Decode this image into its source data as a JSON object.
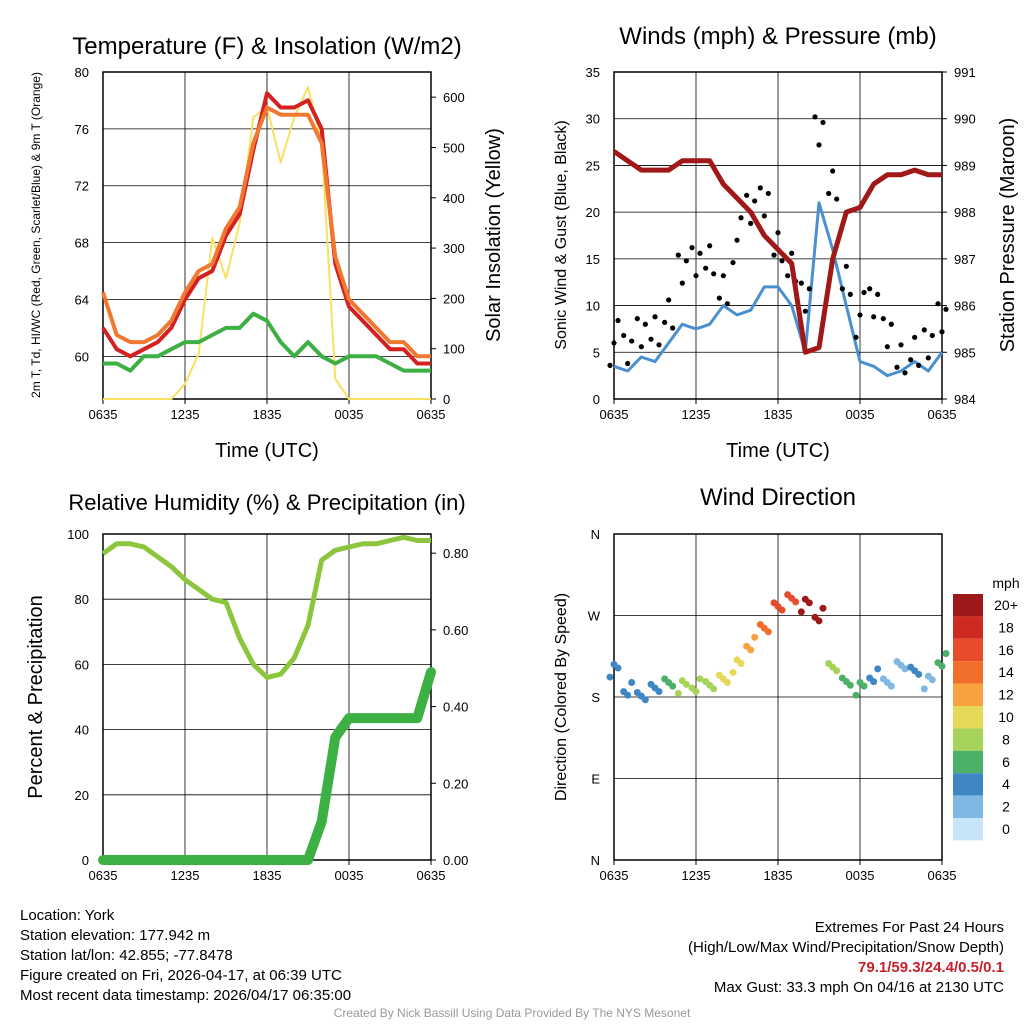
{
  "location": "Location: York",
  "elevation": "Station elevation: 177.942 m",
  "latlon": "Station lat/lon: 42.855; -77.8478",
  "created": "Figure created on Fri, 2026-04-17, at 06:39 UTC",
  "recent": "Most recent data timestamp: 2026/04/17 06:35:00",
  "extremes_title": "Extremes For Past 24 Hours",
  "extremes_legend": "(High/Low/Max Wind/Precipitation/Snow Depth)",
  "extremes_values": "79.1/59.3/24.4/0.5/0.1",
  "max_gust": "Max Gust: 33.3 mph On 04/16 at 2130 UTC",
  "credit": "Created By Nick Bassill Using Data Provided By The NYS Mesonet",
  "chart_data": [
    {
      "id": "temp",
      "type": "line",
      "title": "Temperature (F) & Insolation (W/m²)",
      "xlabel": "Time (UTC)",
      "ylabel": "2m T, Td, HI/WC (Red, Green, Scarlet/Blue) & 9m T (Orange)",
      "y2label": "Solar Insolation (Yellow)",
      "x_ticks": [
        "0635",
        "1235",
        "1835",
        "0035",
        "0635"
      ],
      "ylim": [
        57,
        80
      ],
      "y_ticks": [
        60,
        64,
        68,
        72,
        76,
        80
      ],
      "y2lim": [
        0,
        650
      ],
      "y2_ticks": [
        0,
        100,
        200,
        300,
        400,
        500,
        600
      ],
      "x_hours": [
        0,
        1,
        2,
        3,
        4,
        5,
        6,
        7,
        8,
        9,
        10,
        11,
        12,
        13,
        14,
        15,
        16,
        17,
        18,
        19,
        20,
        21,
        22,
        23,
        24
      ],
      "series": [
        {
          "name": "9m T",
          "axis": "left",
          "color": "#f07830",
          "values": [
            64.5,
            61.5,
            61,
            61,
            61.5,
            62.5,
            64.5,
            66,
            66.5,
            69,
            70.5,
            75,
            77.5,
            77,
            77,
            77,
            75,
            67,
            64,
            63,
            62,
            61,
            61,
            60,
            60
          ]
        },
        {
          "name": "2m T",
          "axis": "left",
          "color": "#d42020",
          "values": [
            62,
            60.5,
            60,
            60.5,
            61,
            62,
            64,
            65.5,
            66,
            68.5,
            70,
            74.5,
            78.5,
            77.5,
            77.5,
            78,
            76,
            66.5,
            63.5,
            62.5,
            61.5,
            60.5,
            60.5,
            59.5,
            59.5
          ]
        },
        {
          "name": "2m Td",
          "axis": "left",
          "color": "#3cb043",
          "values": [
            59.5,
            59.5,
            59,
            60,
            60,
            60.5,
            61,
            61,
            61.5,
            62,
            62,
            63,
            62.5,
            61,
            60,
            61,
            60,
            59.5,
            60,
            60,
            60,
            59.5,
            59,
            59,
            59
          ]
        },
        {
          "name": "Solar Insolation",
          "axis": "right",
          "color": "#f8e060",
          "values": [
            0,
            0,
            0,
            0,
            0,
            0,
            30,
            90,
            320,
            240,
            350,
            560,
            580,
            470,
            560,
            620,
            510,
            40,
            0,
            0,
            0,
            0,
            0,
            0,
            0
          ]
        }
      ]
    },
    {
      "id": "wind",
      "type": "line",
      "title": "Winds (mph) & Pressure (mb)",
      "xlabel": "Time (UTC)",
      "ylabel": "Sonic Wind & Gust (Blue, Black)",
      "y2label": "Station Pressure (Maroon)",
      "x_ticks": [
        "0635",
        "1235",
        "1835",
        "0035",
        "0635"
      ],
      "ylim": [
        0,
        35
      ],
      "y_ticks": [
        0,
        5,
        10,
        15,
        20,
        25,
        30,
        35
      ],
      "y2lim": [
        984,
        991
      ],
      "y2_ticks": [
        984,
        985,
        986,
        987,
        988,
        989,
        990,
        991
      ],
      "x_hours": [
        0,
        1,
        2,
        3,
        4,
        5,
        6,
        7,
        8,
        9,
        10,
        11,
        12,
        13,
        14,
        15,
        16,
        17,
        18,
        19,
        20,
        21,
        22,
        23,
        24
      ],
      "series": [
        {
          "name": "Sonic Wind",
          "axis": "left",
          "color": "#4a90d0",
          "values": [
            3.5,
            3,
            4.5,
            4,
            6,
            8,
            7.5,
            8,
            10,
            9,
            9.5,
            12,
            12,
            10,
            5,
            21,
            16,
            10,
            4,
            3.5,
            2.5,
            3,
            4,
            3,
            5
          ]
        },
        {
          "name": "Gust",
          "axis": "left",
          "color": "#000000",
          "values": [
            6,
            5,
            8,
            7,
            10,
            13,
            15,
            14,
            12,
            17,
            20,
            22,
            16,
            15,
            10,
            29,
            22,
            13,
            9,
            10,
            8,
            4,
            6,
            5,
            9
          ]
        },
        {
          "name": "Station Pressure",
          "axis": "right",
          "color": "#a01818",
          "values": [
            989.3,
            989.1,
            988.9,
            988.9,
            988.9,
            989.1,
            989.1,
            989.1,
            988.6,
            988.3,
            988.0,
            987.5,
            987.2,
            986.9,
            985.0,
            985.1,
            987.0,
            988.0,
            988.1,
            988.6,
            988.8,
            988.8,
            988.9,
            988.8,
            988.8
          ]
        }
      ]
    },
    {
      "id": "rh",
      "type": "line",
      "title": "Relative Humidity (%) & Precipitation (in)",
      "ylabel": "Percent & Precipitation",
      "x_ticks": [
        "0635",
        "1235",
        "1835",
        "0035",
        "0635"
      ],
      "ylim": [
        0,
        100
      ],
      "y_ticks": [
        0,
        20,
        40,
        60,
        80,
        100
      ],
      "y2lim": [
        0,
        0.85
      ],
      "y2_ticks": [
        "0.00",
        "0.20",
        "0.40",
        "0.60",
        "0.80"
      ],
      "x_hours": [
        0,
        1,
        2,
        3,
        4,
        5,
        6,
        7,
        8,
        9,
        10,
        11,
        12,
        13,
        14,
        15,
        16,
        17,
        18,
        19,
        20,
        21,
        22,
        23,
        24
      ],
      "series": [
        {
          "name": "Relative Humidity",
          "axis": "left",
          "color": "#8cc63f",
          "values": [
            94,
            97,
            97,
            96,
            93,
            90,
            86,
            83,
            80,
            79,
            68,
            60,
            56,
            57,
            62,
            72,
            92,
            95,
            96,
            97,
            97,
            98,
            99,
            98,
            98
          ]
        },
        {
          "name": "Precipitation",
          "axis": "right",
          "color": "#3cb043",
          "values": [
            0,
            0,
            0,
            0,
            0,
            0,
            0,
            0,
            0,
            0,
            0,
            0,
            0,
            0,
            0,
            0,
            0.1,
            0.32,
            0.37,
            0.37,
            0.37,
            0.37,
            0.37,
            0.37,
            0.49
          ]
        }
      ]
    },
    {
      "id": "dir",
      "type": "scatter",
      "title": "Wind Direction",
      "ylabel": "Direction (Colored By Speed)",
      "x_ticks": [
        "0635",
        "1235",
        "1835",
        "0035",
        "0635"
      ],
      "y_ticks": [
        "N",
        "E",
        "S",
        "W",
        "N"
      ],
      "ylim": [
        0,
        360
      ],
      "legend_title": "mph",
      "legend_labels": [
        "20+",
        "18",
        "16",
        "14",
        "12",
        "10",
        "8",
        "6",
        "4",
        "2",
        "0"
      ],
      "legend_colors": [
        "#9e1a1a",
        "#cf2a22",
        "#e84a2c",
        "#f06d2a",
        "#f7a23f",
        "#e8d85a",
        "#a6d45a",
        "#4cb069",
        "#3e86c4",
        "#7fb8e3",
        "#c6e5f6"
      ],
      "x_hours": [
        0,
        1,
        2,
        3,
        4,
        5,
        6,
        7,
        8,
        9,
        10,
        11,
        12,
        13,
        14,
        15,
        16,
        17,
        18,
        19,
        20,
        21,
        22,
        23,
        24
      ],
      "direction": [
        210,
        190,
        185,
        190,
        192,
        190,
        192,
        195,
        198,
        215,
        240,
        260,
        280,
        285,
        280,
        270,
        215,
        195,
        190,
        205,
        200,
        215,
        205,
        195,
        220
      ],
      "speed": [
        3,
        3,
        4,
        4,
        5,
        7,
        7,
        8,
        9,
        10,
        12,
        13,
        15,
        16,
        19,
        21,
        8,
        6,
        5,
        3,
        2,
        2,
        3,
        2,
        5
      ]
    }
  ]
}
